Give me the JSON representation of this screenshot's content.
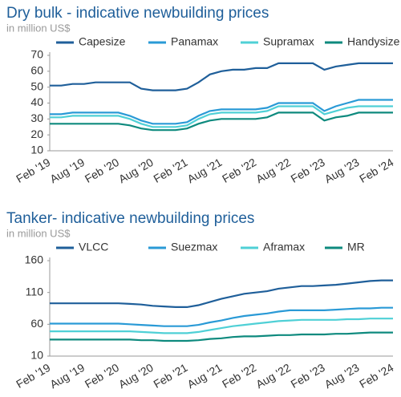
{
  "chart_data": [
    {
      "type": "line",
      "title": "Dry bulk - indicative newbuilding prices",
      "subtitle": "in million US$",
      "categories": [
        "Feb '19",
        null,
        null,
        "Aug '19",
        null,
        null,
        "Feb '20",
        null,
        null,
        "Aug '20",
        null,
        null,
        "Feb '21",
        null,
        null,
        "Aug '21",
        null,
        null,
        "Feb '22",
        null,
        null,
        "Aug '22",
        null,
        null,
        "Feb '23",
        null,
        null,
        "Aug '23",
        null,
        null,
        "Feb '24"
      ],
      "ylim": [
        10,
        70
      ],
      "yticks": [
        10,
        20,
        30,
        40,
        50,
        60,
        70
      ],
      "grid": false,
      "series": [
        {
          "name": "Capesize",
          "color": "#1f5f9a",
          "values": [
            51,
            51,
            52,
            52,
            53,
            53,
            53,
            53,
            49,
            48,
            48,
            48,
            49,
            53,
            58,
            60,
            61,
            61,
            62,
            62,
            65,
            65,
            65,
            65,
            61,
            63,
            64,
            65,
            65,
            65,
            65
          ]
        },
        {
          "name": "Panamax",
          "color": "#2a9ad6",
          "values": [
            33,
            33,
            34,
            34,
            34,
            34,
            34,
            32,
            29,
            27,
            27,
            27,
            28,
            32,
            35,
            36,
            36,
            36,
            36,
            37,
            40,
            40,
            40,
            40,
            35,
            38,
            40,
            42,
            42,
            42,
            42
          ]
        },
        {
          "name": "Supramax",
          "color": "#4fd0d6",
          "values": [
            31,
            31,
            32,
            32,
            32,
            32,
            32,
            30,
            27,
            25,
            25,
            25,
            26,
            30,
            33,
            34,
            34,
            34,
            34,
            35,
            38,
            38,
            38,
            38,
            33,
            35,
            37,
            38,
            38,
            38,
            38
          ]
        },
        {
          "name": "Handysize",
          "color": "#0e8a7e",
          "values": [
            27,
            27,
            27,
            27,
            27,
            27,
            27,
            26,
            24,
            23,
            23,
            23,
            24,
            27,
            29,
            30,
            30,
            30,
            30,
            31,
            34,
            34,
            34,
            34,
            29,
            31,
            32,
            34,
            34,
            34,
            34
          ]
        }
      ]
    },
    {
      "type": "line",
      "title": "Tanker- indicative newbuilding prices",
      "subtitle": "in million US$",
      "categories": [
        "Feb '19",
        null,
        null,
        "Aug '19",
        null,
        null,
        "Feb '20",
        null,
        null,
        "Aug '20",
        null,
        null,
        "Feb '21",
        null,
        null,
        "Aug '21",
        null,
        null,
        "Feb '22",
        null,
        null,
        "Aug '22",
        null,
        null,
        "Feb '23",
        null,
        null,
        "Aug '23",
        null,
        null,
        "Feb '24"
      ],
      "ylim": [
        10,
        160
      ],
      "yticks": [
        10,
        60,
        110,
        160
      ],
      "grid": false,
      "series": [
        {
          "name": "VLCC",
          "color": "#1f5f9a",
          "values": [
            93,
            93,
            93,
            93,
            93,
            93,
            93,
            92,
            91,
            89,
            88,
            87,
            87,
            90,
            95,
            100,
            104,
            108,
            110,
            112,
            116,
            118,
            120,
            120,
            121,
            122,
            124,
            126,
            128,
            129,
            129
          ]
        },
        {
          "name": "Suezmax",
          "color": "#2a9ad6",
          "values": [
            61,
            61,
            61,
            61,
            61,
            61,
            61,
            60,
            59,
            58,
            57,
            57,
            57,
            59,
            63,
            66,
            70,
            73,
            75,
            77,
            80,
            82,
            82,
            82,
            82,
            83,
            84,
            85,
            85,
            86,
            86
          ]
        },
        {
          "name": "Aframax",
          "color": "#4fd0d6",
          "values": [
            49,
            49,
            49,
            49,
            49,
            49,
            49,
            49,
            48,
            47,
            46,
            46,
            46,
            48,
            51,
            54,
            57,
            59,
            61,
            63,
            65,
            66,
            67,
            67,
            67,
            67,
            68,
            68,
            69,
            69,
            69
          ]
        },
        {
          "name": "MR",
          "color": "#0e8a7e",
          "values": [
            36,
            36,
            36,
            36,
            36,
            36,
            36,
            36,
            35,
            35,
            34,
            34,
            34,
            35,
            37,
            38,
            40,
            41,
            41,
            42,
            43,
            43,
            44,
            44,
            44,
            45,
            45,
            46,
            47,
            47,
            47
          ]
        }
      ]
    }
  ]
}
